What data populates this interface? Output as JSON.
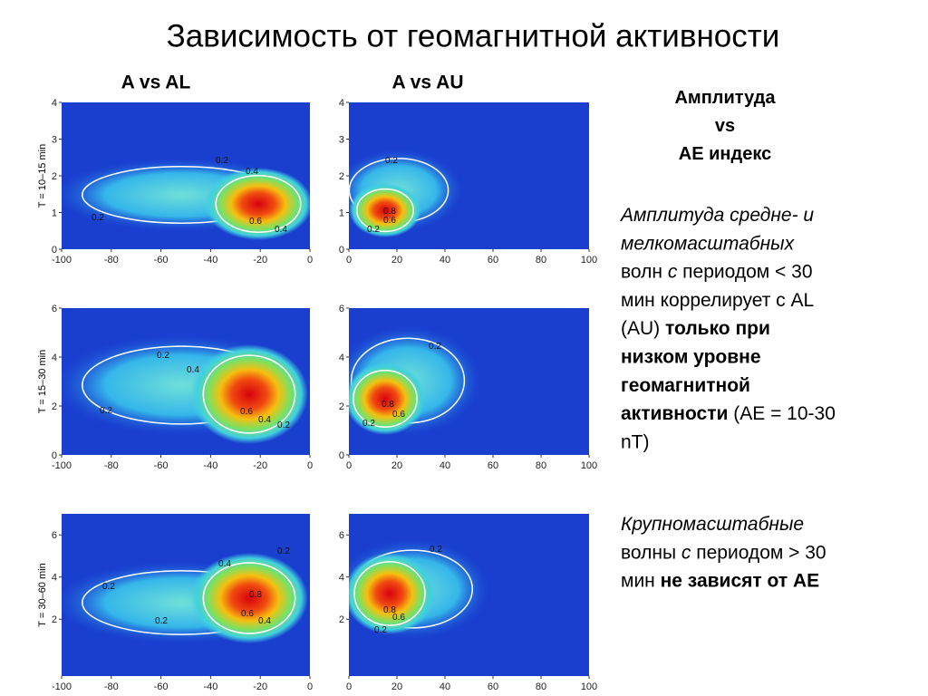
{
  "title": "Зависимость от геомагнитной активности",
  "column_titles": [
    "A  vs  AL",
    "A  vs  AU"
  ],
  "xlim_al": [
    -100,
    0
  ],
  "xticks_al": [
    -100,
    -80,
    -60,
    -40,
    -20,
    0
  ],
  "xlim_au": [
    0,
    100
  ],
  "xticks_au": [
    0,
    20,
    40,
    60,
    80,
    100
  ],
  "rows": [
    {
      "ylabel": "T = 10–15 min",
      "ylim": [
        0,
        4
      ],
      "yticks": [
        0,
        1,
        2,
        3,
        4
      ],
      "contour_labels_al": [
        0.2,
        0.4,
        0.2,
        0.6,
        0.4
      ],
      "contour_labels_au": [
        0.2,
        0.8,
        0.6,
        0.2
      ]
    },
    {
      "ylabel": "T = 15–30 min",
      "ylim": [
        0,
        6
      ],
      "yticks": [
        0,
        2,
        4,
        6
      ],
      "contour_labels_al": [
        0.2,
        0.4,
        0.2,
        0.6,
        0.4,
        0.2
      ],
      "contour_labels_au": [
        0.2,
        0.8,
        0.6,
        0.2
      ]
    },
    {
      "ylabel": "T = 30–60 min",
      "ylim": [
        -0.7,
        7
      ],
      "yticks": [
        2,
        4,
        6
      ],
      "contour_labels_al": [
        0.2,
        0.4,
        0.2,
        0.8,
        0.6,
        0.4,
        0.2
      ],
      "contour_labels_au": [
        0.2,
        0.8,
        0.6,
        0.2
      ]
    }
  ],
  "side_heading": [
    "Амплитуда",
    "vs",
    "AE индекс"
  ],
  "paragraphs": [
    [
      [
        {
          "text": "Амплитуда средне- и",
          "style": "i"
        }
      ],
      [
        {
          "text": "мелкомасштабных",
          "style": "i"
        }
      ],
      [
        {
          "text": "волн ",
          "style": "n"
        },
        {
          "text": "с",
          "style": "i"
        },
        {
          "text": " периодом < 30",
          "style": "n"
        }
      ],
      [
        {
          "text": "мин коррелирует с AL",
          "style": "n"
        }
      ],
      [
        {
          "text": "(AU) ",
          "style": "n"
        },
        {
          "text": "только при",
          "style": "b"
        }
      ],
      [
        {
          "text": "низком уровне",
          "style": "b"
        }
      ],
      [
        {
          "text": "геомагнитной",
          "style": "b"
        }
      ],
      [
        {
          "text": "активности",
          "style": "b"
        },
        {
          "text": " (AE = 10-30",
          "style": "n"
        }
      ],
      [
        {
          "text": "nT)",
          "style": "n"
        }
      ]
    ],
    [
      [
        {
          "text": "Крупномасштабные",
          "style": "i"
        }
      ],
      [
        {
          "text": "волны ",
          "style": "n"
        },
        {
          "text": "с",
          "style": "i"
        },
        {
          "text": " периодом > 30",
          "style": "n"
        }
      ],
      [
        {
          "text": "мин ",
          "style": "n"
        },
        {
          "text": "не зависят от AE",
          "style": "b"
        }
      ]
    ]
  ]
}
